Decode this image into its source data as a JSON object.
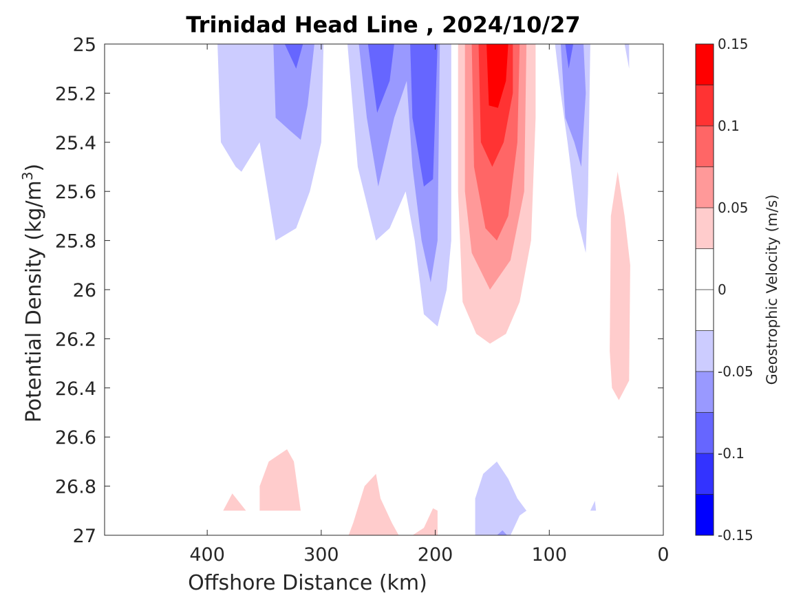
{
  "chart_data": {
    "type": "contour",
    "title": "Trinidad Head Line , 2024/10/27",
    "xlabel": "Offshore Distance (km)",
    "ylabel": "Potential Density (kg/m",
    "ylabel_superscript": "3",
    "ylabel_suffix": ")",
    "x_reversed": true,
    "y_reversed": true,
    "xlim": [
      490,
      0
    ],
    "ylim": [
      25,
      27
    ],
    "x_ticks": [
      400,
      300,
      200,
      100,
      0
    ],
    "y_ticks": [
      25,
      25.2,
      25.4,
      25.6,
      25.8,
      26,
      26.2,
      26.4,
      26.6,
      26.8,
      27
    ],
    "y_tick_labels": [
      "25",
      "25.2",
      "25.4",
      "25.6",
      "25.8",
      "26",
      "26.2",
      "26.4",
      "26.6",
      "26.8",
      "27"
    ],
    "grid": false,
    "colorbar": {
      "label": "Geostrophic Velocity (m/s)",
      "range": [
        -0.15,
        0.15
      ],
      "levels": [
        -0.15,
        -0.125,
        -0.1,
        -0.075,
        -0.05,
        -0.025,
        0,
        0.025,
        0.05,
        0.075,
        0.1,
        0.125,
        0.15
      ],
      "colors": [
        "#0000ff",
        "#3333ff",
        "#6666ff",
        "#9999ff",
        "#ccccff",
        "#ffffff",
        "#ffffff",
        "#ffcccc",
        "#ff9999",
        "#ff6666",
        "#ff3333",
        "#ff0000"
      ],
      "ticks": [
        0.15,
        0.1,
        0.05,
        0,
        -0.05,
        -0.1,
        -0.15
      ],
      "tick_labels": [
        "0.15",
        "0.1",
        "0.05",
        "0",
        "-0.05",
        "-0.1",
        "-0.15"
      ]
    },
    "regions": [
      {
        "level": -0.05,
        "color": "#ccccff",
        "points": [
          [
            391,
            25
          ],
          [
            388,
            25.4
          ],
          [
            375,
            25.5
          ],
          [
            370,
            25.52
          ],
          [
            354,
            25.4
          ],
          [
            340,
            25.8
          ],
          [
            322,
            25.75
          ],
          [
            310,
            25.6
          ],
          [
            300,
            25.4
          ],
          [
            298,
            25
          ],
          [
            391,
            25
          ]
        ]
      },
      {
        "level": -0.075,
        "color": "#9999ff",
        "points": [
          [
            342,
            25
          ],
          [
            340,
            25.3
          ],
          [
            328,
            25.35
          ],
          [
            318,
            25.39
          ],
          [
            312,
            25.25
          ],
          [
            306,
            25
          ],
          [
            342,
            25
          ]
        ]
      },
      {
        "level": -0.1,
        "color": "#6666ff",
        "points": [
          [
            332,
            25
          ],
          [
            322,
            25.1
          ],
          [
            316,
            25
          ],
          [
            332,
            25
          ]
        ]
      },
      {
        "level": -0.05,
        "color": "#ccccff",
        "points": [
          [
            277,
            25
          ],
          [
            268,
            25.5
          ],
          [
            252,
            25.8
          ],
          [
            240,
            25.75
          ],
          [
            226,
            25.6
          ],
          [
            218,
            25.8
          ],
          [
            210,
            26.1
          ],
          [
            198,
            26.15
          ],
          [
            190,
            26
          ],
          [
            186,
            25.8
          ],
          [
            186,
            25
          ],
          [
            277,
            25
          ]
        ]
      },
      {
        "level": -0.075,
        "color": "#9999ff",
        "points": [
          [
            267,
            25
          ],
          [
            260,
            25.3
          ],
          [
            250,
            25.58
          ],
          [
            236,
            25.3
          ],
          [
            225,
            25.15
          ],
          [
            220,
            25.5
          ],
          [
            212,
            25.8
          ],
          [
            204,
            25.97
          ],
          [
            198,
            25.8
          ],
          [
            196,
            25
          ],
          [
            267,
            25
          ]
        ]
      },
      {
        "level": -0.1,
        "color": "#6666ff",
        "points": [
          [
            259,
            25
          ],
          [
            251,
            25.28
          ],
          [
            240,
            25.15
          ],
          [
            236,
            25
          ],
          [
            259,
            25
          ]
        ]
      },
      {
        "level": -0.1,
        "color": "#6666ff",
        "points": [
          [
            222,
            25
          ],
          [
            220,
            25.3
          ],
          [
            210,
            25.58
          ],
          [
            202,
            25.55
          ],
          [
            198,
            25
          ],
          [
            222,
            25
          ]
        ]
      },
      {
        "level": 0.05,
        "color": "#ffcccc",
        "points": [
          [
            180,
            25
          ],
          [
            180,
            25.6
          ],
          [
            176,
            26.05
          ],
          [
            164,
            26.18
          ],
          [
            152,
            26.22
          ],
          [
            138,
            26.18
          ],
          [
            126,
            26.05
          ],
          [
            116,
            25.8
          ],
          [
            112,
            25.3
          ],
          [
            112,
            25
          ],
          [
            180,
            25
          ]
        ]
      },
      {
        "level": 0.075,
        "color": "#ff9999",
        "points": [
          [
            174,
            25
          ],
          [
            174,
            25.6
          ],
          [
            168,
            25.85
          ],
          [
            152,
            26.0
          ],
          [
            134,
            25.88
          ],
          [
            122,
            25.6
          ],
          [
            120,
            25
          ],
          [
            174,
            25
          ]
        ]
      },
      {
        "level": 0.1,
        "color": "#ff6666",
        "points": [
          [
            168,
            25
          ],
          [
            166,
            25.5
          ],
          [
            156,
            25.75
          ],
          [
            146,
            25.8
          ],
          [
            136,
            25.7
          ],
          [
            128,
            25.4
          ],
          [
            126,
            25
          ],
          [
            168,
            25
          ]
        ]
      },
      {
        "level": 0.125,
        "color": "#ff3333",
        "points": [
          [
            162,
            25
          ],
          [
            160,
            25.4
          ],
          [
            150,
            25.5
          ],
          [
            140,
            25.4
          ],
          [
            132,
            25.2
          ],
          [
            132,
            25
          ],
          [
            162,
            25
          ]
        ]
      },
      {
        "level": 0.15,
        "color": "#ff0000",
        "points": [
          [
            155,
            25
          ],
          [
            153,
            25.25
          ],
          [
            145,
            25.26
          ],
          [
            138,
            25.15
          ],
          [
            136,
            25
          ],
          [
            155,
            25
          ]
        ]
      },
      {
        "level": -0.05,
        "color": "#ccccff",
        "points": [
          [
            95,
            25
          ],
          [
            90,
            25.2
          ],
          [
            84,
            25.4
          ],
          [
            76,
            25.7
          ],
          [
            68,
            25.85
          ],
          [
            66,
            25.6
          ],
          [
            64,
            25
          ],
          [
            95,
            25
          ]
        ]
      },
      {
        "level": -0.075,
        "color": "#9999ff",
        "points": [
          [
            90,
            25
          ],
          [
            86,
            25.3
          ],
          [
            78,
            25.4
          ],
          [
            72,
            25.5
          ],
          [
            68,
            25.2
          ],
          [
            70,
            25
          ],
          [
            90,
            25
          ]
        ]
      },
      {
        "level": -0.1,
        "color": "#6666ff",
        "points": [
          [
            86,
            25
          ],
          [
            83,
            25.1
          ],
          [
            79,
            25
          ],
          [
            86,
            25
          ]
        ]
      },
      {
        "level": -0.05,
        "color": "#ccccff",
        "points": [
          [
            34,
            25
          ],
          [
            30,
            25.1
          ],
          [
            30,
            25
          ],
          [
            34,
            25
          ]
        ]
      },
      {
        "level": 0.05,
        "color": "#ffcccc",
        "points": [
          [
            40,
            25.52
          ],
          [
            46,
            25.7
          ],
          [
            47,
            26.25
          ],
          [
            45,
            26.4
          ],
          [
            39,
            26.45
          ],
          [
            30,
            26.37
          ],
          [
            29,
            25.9
          ],
          [
            34,
            25.7
          ],
          [
            40,
            25.52
          ]
        ]
      },
      {
        "level": 0.05,
        "color": "#ffcccc",
        "points": [
          [
            386,
            26.9
          ],
          [
            378,
            26.83
          ],
          [
            366,
            26.9
          ],
          [
            386,
            26.9
          ]
        ]
      },
      {
        "level": 0.05,
        "color": "#ffcccc",
        "points": [
          [
            354,
            26.9
          ],
          [
            354,
            26.8
          ],
          [
            346,
            26.7
          ],
          [
            330,
            26.65
          ],
          [
            324,
            26.7
          ],
          [
            318,
            26.9
          ],
          [
            354,
            26.9
          ]
        ]
      },
      {
        "level": 0.05,
        "color": "#ffcccc",
        "points": [
          [
            276,
            27
          ],
          [
            272,
            26.95
          ],
          [
            262,
            26.8
          ],
          [
            252,
            26.75
          ],
          [
            248,
            26.85
          ],
          [
            238,
            26.95
          ],
          [
            232,
            27
          ],
          [
            276,
            27
          ]
        ]
      },
      {
        "level": 0.05,
        "color": "#ffcccc",
        "points": [
          [
            220,
            27
          ],
          [
            210,
            26.97
          ],
          [
            202,
            26.89
          ],
          [
            198,
            26.9
          ],
          [
            198,
            27
          ],
          [
            220,
            27
          ]
        ]
      },
      {
        "level": -0.05,
        "color": "#ccccff",
        "points": [
          [
            165,
            27
          ],
          [
            165,
            26.85
          ],
          [
            158,
            26.75
          ],
          [
            146,
            26.7
          ],
          [
            136,
            26.77
          ],
          [
            128,
            26.85
          ],
          [
            120,
            26.9
          ],
          [
            126,
            26.92
          ],
          [
            134,
            27
          ],
          [
            165,
            27
          ]
        ]
      },
      {
        "level": -0.075,
        "color": "#9999ff",
        "points": [
          [
            146,
            27
          ],
          [
            141,
            26.98
          ],
          [
            137,
            27
          ],
          [
            146,
            27
          ]
        ]
      },
      {
        "level": -0.05,
        "color": "#ccccff",
        "points": [
          [
            64,
            26.9
          ],
          [
            60,
            26.86
          ],
          [
            59,
            26.9
          ],
          [
            64,
            26.9
          ]
        ]
      }
    ]
  }
}
